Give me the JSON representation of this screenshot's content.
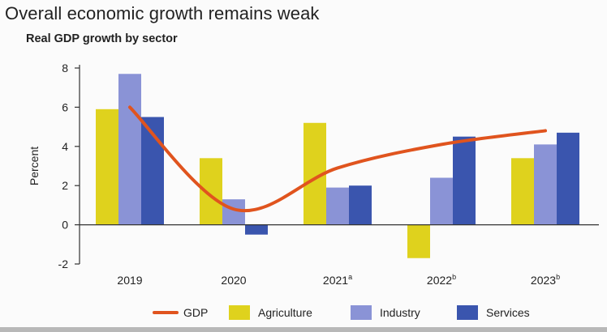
{
  "chart_data": {
    "type": "bar",
    "title": "Overall economic growth remains weak",
    "subtitle": "Real GDP growth by sector",
    "ylabel": "Percent",
    "xlabel": "",
    "ylim": [
      -2,
      8
    ],
    "yticks": [
      -2,
      0,
      2,
      4,
      6,
      8
    ],
    "grid": false,
    "legend_position": "bottom",
    "categories": [
      {
        "label": "2019",
        "sup": ""
      },
      {
        "label": "2020",
        "sup": ""
      },
      {
        "label": "2021",
        "sup": "a"
      },
      {
        "label": "2022",
        "sup": "b"
      },
      {
        "label": "2023",
        "sup": "b"
      }
    ],
    "series": [
      {
        "name": "Agriculture",
        "type": "bar",
        "color": "#dfd21d",
        "values": [
          5.9,
          3.4,
          5.2,
          -1.7,
          3.4
        ]
      },
      {
        "name": "Industry",
        "type": "bar",
        "color": "#8a93d6",
        "values": [
          7.7,
          1.3,
          1.9,
          2.4,
          4.1
        ]
      },
      {
        "name": "Services",
        "type": "bar",
        "color": "#3a55ae",
        "values": [
          5.5,
          -0.5,
          2.0,
          4.5,
          4.7
        ]
      },
      {
        "name": "GDP",
        "type": "line",
        "color": "#e0541e",
        "values": [
          6.0,
          0.8,
          2.9,
          4.1,
          4.8
        ]
      }
    ],
    "legend_order": [
      "GDP",
      "Agriculture",
      "Industry",
      "Services"
    ]
  }
}
